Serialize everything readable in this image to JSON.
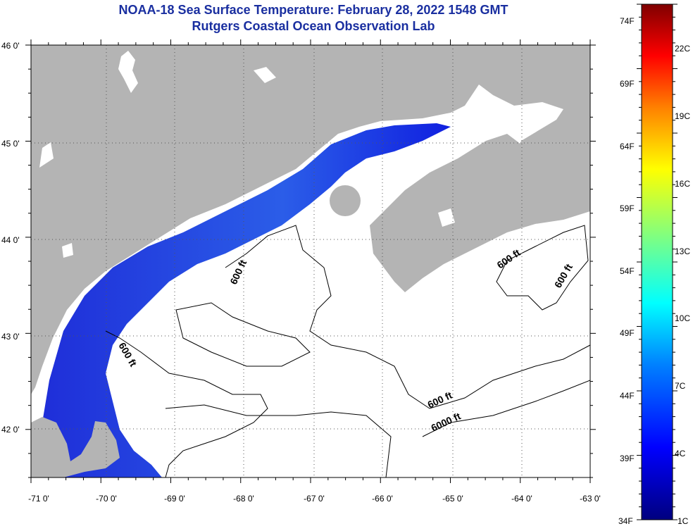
{
  "header": {
    "title": "NOAA-18 Sea Surface Temperature:  February 28, 2022 1548 GMT",
    "subtitle": "Rutgers Coastal Ocean Observation Lab"
  },
  "map": {
    "lon_range": [
      -71.0,
      -63.0
    ],
    "lat_range": [
      41.5,
      46.0
    ],
    "lon_ticks": [
      "-71 0'",
      "-70 0'",
      "-69 0'",
      "-68 0'",
      "-67 0'",
      "-66 0'",
      "-65 0'",
      "-64 0'",
      "-63 0'"
    ],
    "lat_ticks": [
      "46 0'",
      "45 0'",
      "44 0'",
      "43 0'",
      "42 0'"
    ],
    "land_color": "#b4b4b4",
    "water_cloud_color": "#ffffff",
    "grid": "dotted",
    "contour_labels": [
      "600 ft",
      "600 ft",
      "600 ft",
      "600 ft",
      "600 ft",
      "6000 ft"
    ]
  },
  "colorbar": {
    "fahrenheit_labels": [
      "74F",
      "69F",
      "64F",
      "59F",
      "54F",
      "49F",
      "44F",
      "39F",
      "34F"
    ],
    "celsius_labels": [
      "22C",
      "19C",
      "16C",
      "13C",
      "10C",
      "7C",
      "4C",
      "1C"
    ],
    "colors": [
      "#7f0000",
      "#ff0000",
      "#ff8000",
      "#ffff00",
      "#80ff80",
      "#00ffff",
      "#0080ff",
      "#0000ff",
      "#00007f"
    ]
  }
}
